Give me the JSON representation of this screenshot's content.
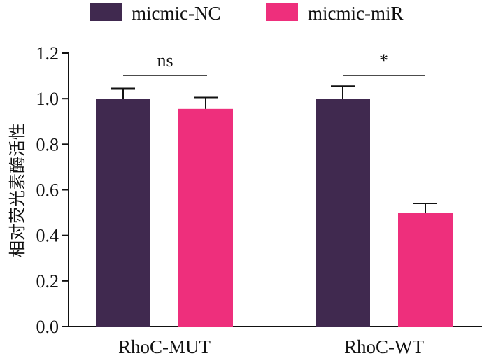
{
  "chart_data": {
    "type": "bar",
    "categories": [
      "RhoC-MUT",
      "RhoC-WT"
    ],
    "series": [
      {
        "name": "micmic-NC",
        "values": [
          1.0,
          1.0
        ],
        "errors": [
          0.045,
          0.055
        ],
        "color": "#40294f"
      },
      {
        "name": "micmic-miR",
        "values": [
          0.955,
          0.5
        ],
        "errors": [
          0.05,
          0.04
        ],
        "color": "#ee2f7c"
      }
    ],
    "ylabel": "相对荧光素酶活性",
    "xlabel": "",
    "ylim": [
      0,
      1.2
    ],
    "yticks": [
      0.0,
      0.2,
      0.4,
      0.6,
      0.8,
      1.0,
      1.2
    ],
    "ytick_labels": [
      "0.0",
      "0.2",
      "0.4",
      "0.6",
      "0.8",
      "1.0",
      "1.2"
    ],
    "legend_position": "top",
    "annotations": [
      {
        "text": "ns",
        "group": 0
      },
      {
        "text": "*",
        "group": 1
      }
    ],
    "grid": false
  }
}
